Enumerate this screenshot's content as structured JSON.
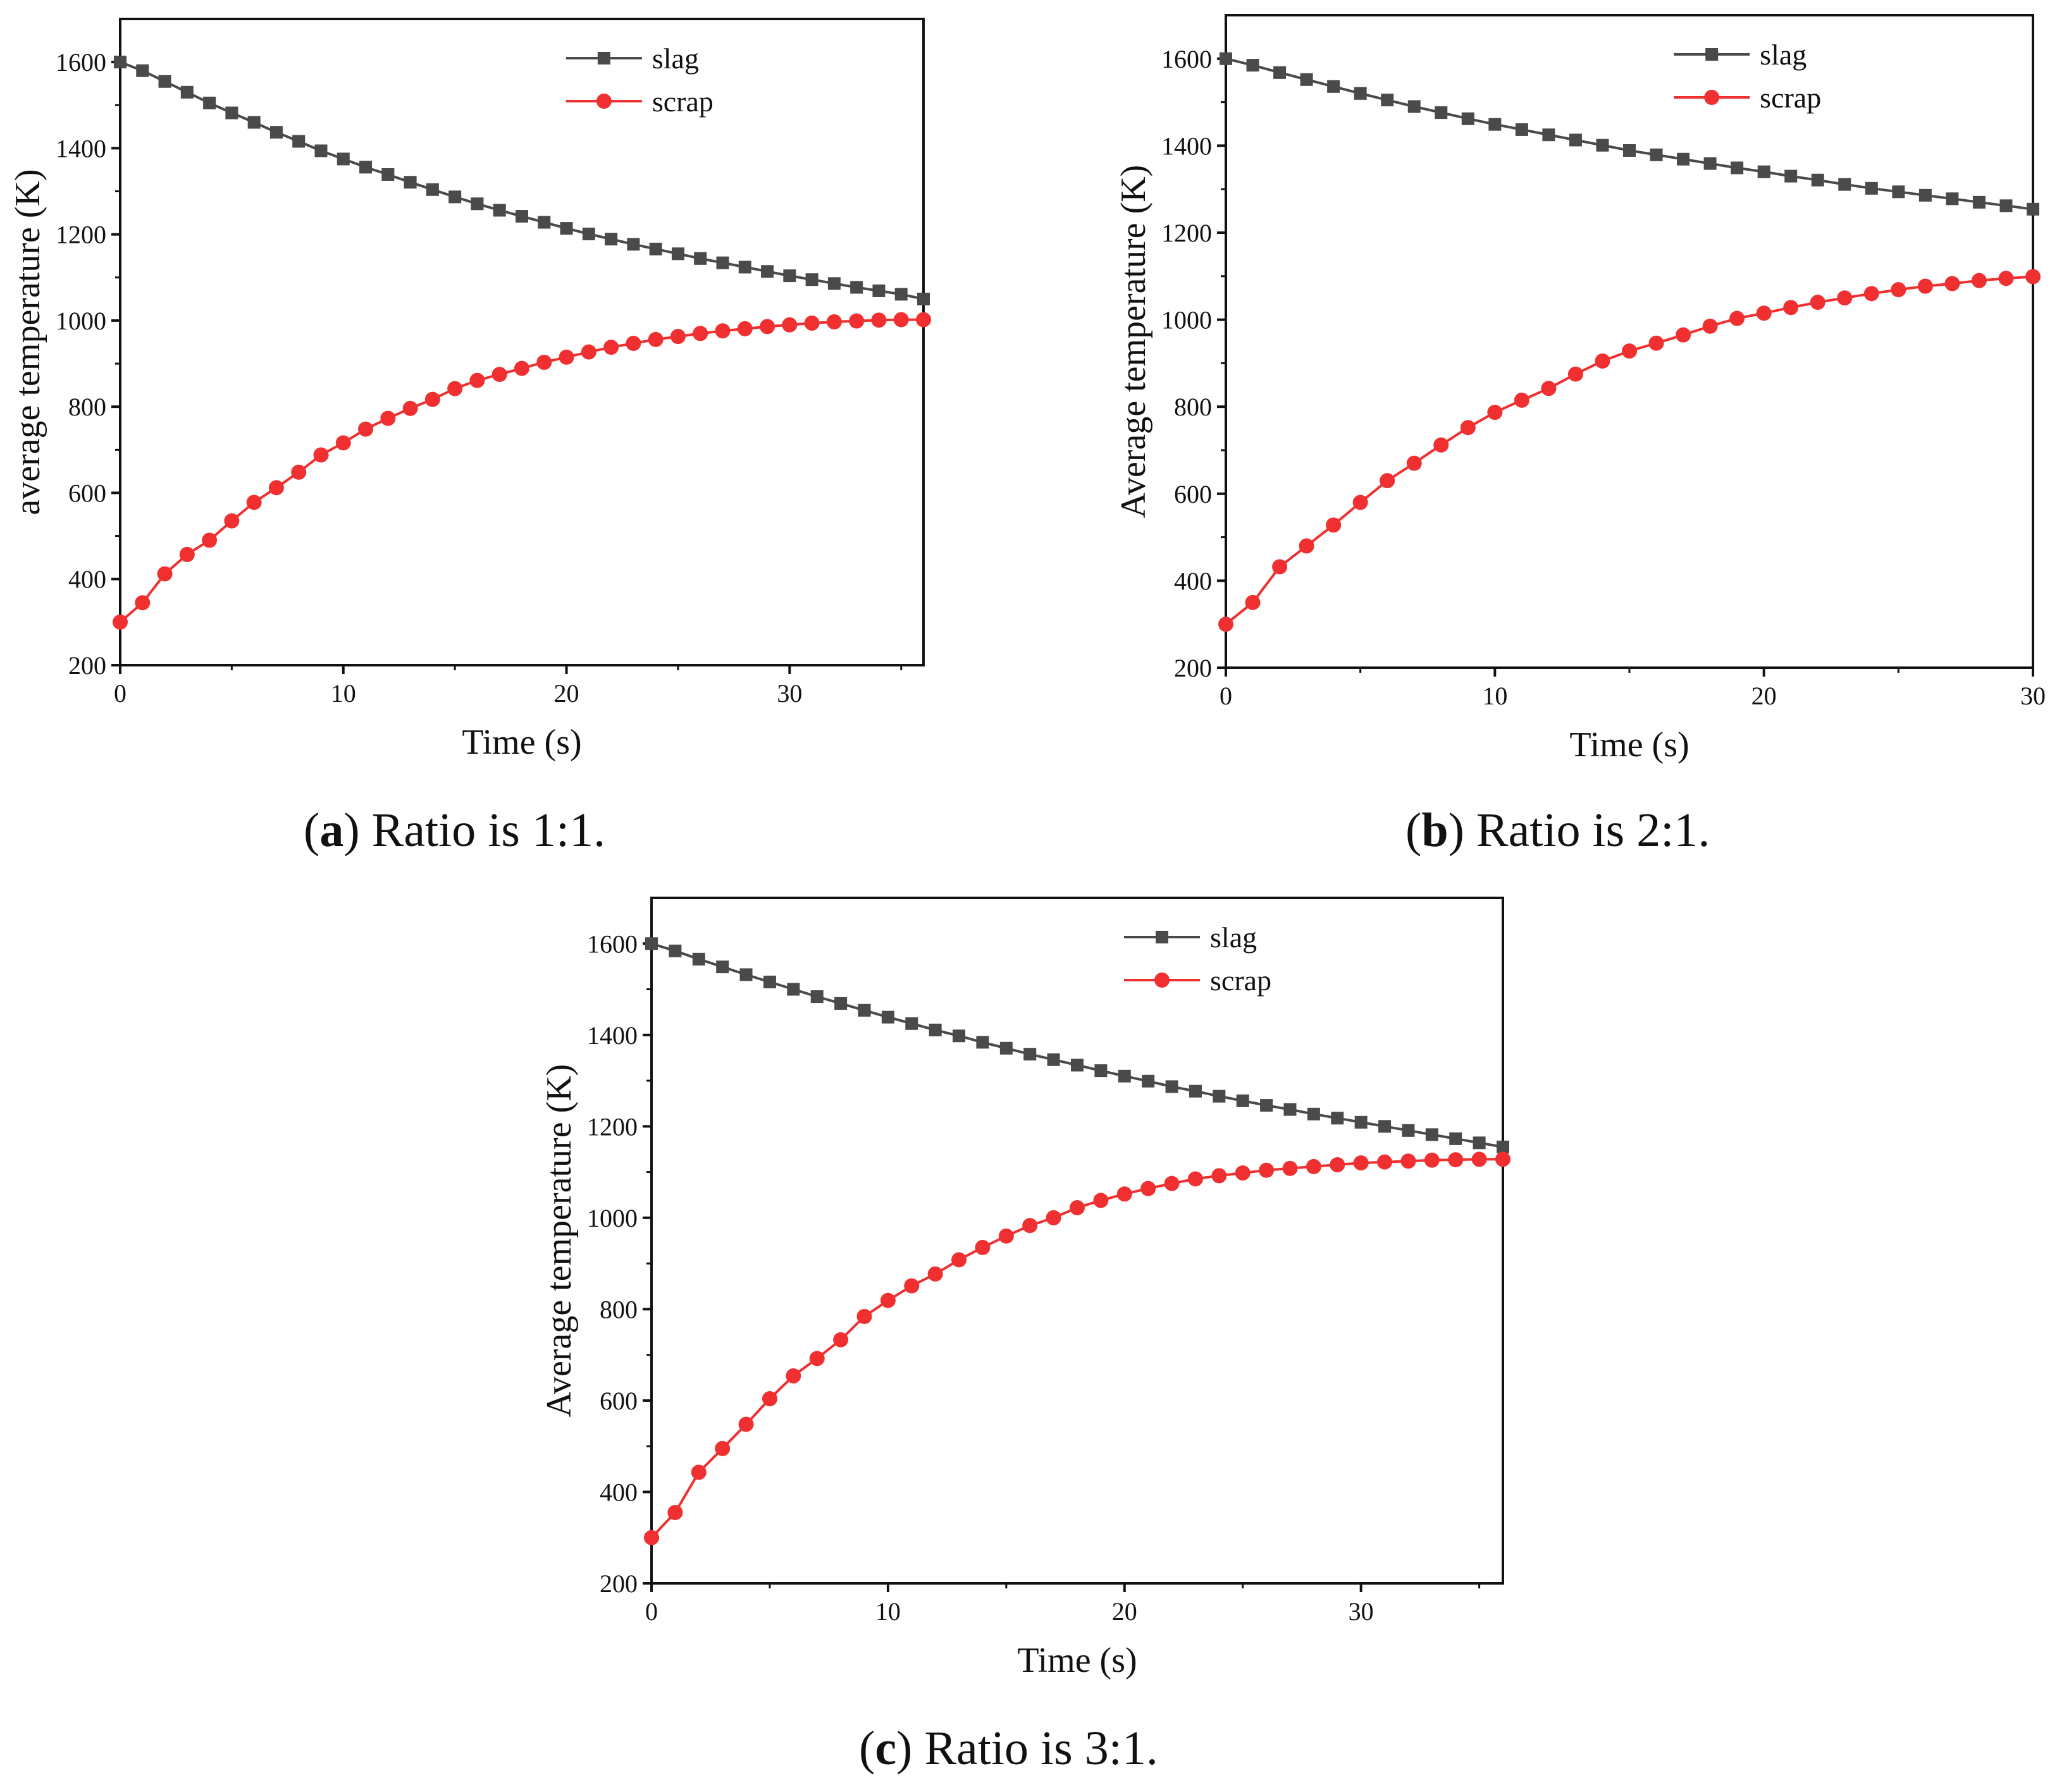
{
  "panels": [
    {
      "id": "a",
      "caption_letter": "a",
      "caption_text": " Ratio is 1:1.",
      "xlabel": "Time (s)",
      "ylabel": "average temperature (K)"
    },
    {
      "id": "b",
      "caption_letter": "b",
      "caption_text": " Ratio is 2:1.",
      "xlabel": "Time (s)",
      "ylabel": "Average temperature (K)"
    },
    {
      "id": "c",
      "caption_letter": "c",
      "caption_text": " Ratio is 3:1.",
      "xlabel": "Time (s)",
      "ylabel": "Average temperature (K)"
    }
  ],
  "colors": {
    "slag": "#4a4a4a",
    "scrap": "#f03030",
    "axis": "#111111"
  },
  "chart_data": [
    {
      "type": "line",
      "title": "",
      "xlabel": "Time (s)",
      "ylabel": "average temperature (K)",
      "xlim": [
        0,
        36
      ],
      "ylim": [
        200,
        1700
      ],
      "xticks": [
        0,
        10,
        20,
        30
      ],
      "yticks": [
        200,
        400,
        600,
        800,
        1000,
        1200,
        1400,
        1600
      ],
      "legend": "top-right",
      "grid": false,
      "x": [
        0,
        1,
        2,
        3,
        4,
        5,
        6,
        7,
        8,
        9,
        10,
        11,
        12,
        13,
        14,
        15,
        16,
        17,
        18,
        19,
        20,
        21,
        22,
        23,
        24,
        25,
        26,
        27,
        28,
        29,
        30,
        31,
        32,
        33,
        34,
        35,
        36
      ],
      "series": [
        {
          "name": "slag",
          "marker": "square",
          "values": [
            1600,
            1580,
            1555,
            1530,
            1505,
            1482,
            1460,
            1437,
            1416,
            1394,
            1375,
            1356,
            1339,
            1321,
            1304,
            1287,
            1271,
            1256,
            1242,
            1228,
            1214,
            1201,
            1189,
            1177,
            1166,
            1155,
            1144,
            1134,
            1124,
            1114,
            1104,
            1095,
            1086,
            1077,
            1069,
            1061,
            1050
          ]
        },
        {
          "name": "scrap",
          "marker": "circle",
          "values": [
            300,
            345,
            412,
            457,
            490,
            535,
            578,
            612,
            648,
            688,
            716,
            748,
            773,
            796,
            817,
            842,
            861,
            875,
            889,
            903,
            915,
            927,
            938,
            947,
            956,
            963,
            970,
            976,
            981,
            986,
            990,
            994,
            997,
            999,
            1001,
            1002,
            1002
          ]
        }
      ]
    },
    {
      "type": "line",
      "title": "",
      "xlabel": "Time (s)",
      "ylabel": "Average temperature (K)",
      "xlim": [
        0,
        30
      ],
      "ylim": [
        200,
        1700
      ],
      "xticks": [
        0,
        10,
        20,
        30
      ],
      "yticks": [
        200,
        400,
        600,
        800,
        1000,
        1200,
        1400,
        1600
      ],
      "legend": "top-right",
      "grid": false,
      "x": [
        0,
        1,
        2,
        3,
        4,
        5,
        6,
        7,
        8,
        9,
        10,
        11,
        12,
        13,
        14,
        15,
        16,
        17,
        18,
        19,
        20,
        21,
        22,
        23,
        24,
        25,
        26,
        27,
        28,
        29,
        30
      ],
      "series": [
        {
          "name": "slag",
          "marker": "square",
          "values": [
            1600,
            1585,
            1568,
            1552,
            1536,
            1520,
            1505,
            1490,
            1476,
            1462,
            1449,
            1437,
            1425,
            1413,
            1401,
            1389,
            1379,
            1369,
            1359,
            1349,
            1340,
            1330,
            1321,
            1311,
            1302,
            1294,
            1286,
            1278,
            1270,
            1262,
            1254
          ]
        },
        {
          "name": "scrap",
          "marker": "circle",
          "values": [
            300,
            350,
            432,
            480,
            528,
            580,
            630,
            670,
            712,
            752,
            787,
            815,
            842,
            875,
            905,
            928,
            946,
            965,
            985,
            1003,
            1015,
            1028,
            1040,
            1050,
            1060,
            1069,
            1077,
            1083,
            1090,
            1095,
            1099
          ]
        }
      ]
    },
    {
      "type": "line",
      "title": "",
      "xlabel": "Time (s)",
      "ylabel": "Average temperature (K)",
      "xlim": [
        0,
        36
      ],
      "ylim": [
        200,
        1700
      ],
      "xticks": [
        0,
        10,
        20,
        30
      ],
      "yticks": [
        200,
        400,
        600,
        800,
        1000,
        1200,
        1400,
        1600
      ],
      "legend": "top-right",
      "grid": false,
      "x": [
        0,
        1,
        2,
        3,
        4,
        5,
        6,
        7,
        8,
        9,
        10,
        11,
        12,
        13,
        14,
        15,
        16,
        17,
        18,
        19,
        20,
        21,
        22,
        23,
        24,
        25,
        26,
        27,
        28,
        29,
        30,
        31,
        32,
        33,
        34,
        35,
        36
      ],
      "series": [
        {
          "name": "slag",
          "marker": "square",
          "values": [
            1600,
            1584,
            1566,
            1549,
            1532,
            1516,
            1500,
            1484,
            1469,
            1454,
            1439,
            1425,
            1411,
            1398,
            1384,
            1371,
            1358,
            1346,
            1334,
            1322,
            1310,
            1299,
            1287,
            1277,
            1266,
            1256,
            1246,
            1237,
            1227,
            1218,
            1209,
            1200,
            1191,
            1182,
            1173,
            1164,
            1155
          ]
        },
        {
          "name": "scrap",
          "marker": "circle",
          "values": [
            300,
            355,
            443,
            495,
            548,
            604,
            654,
            692,
            733,
            784,
            819,
            851,
            877,
            908,
            935,
            960,
            983,
            1000,
            1022,
            1038,
            1052,
            1064,
            1075,
            1085,
            1092,
            1098,
            1104,
            1108,
            1112,
            1116,
            1120,
            1122,
            1124,
            1126,
            1127,
            1128,
            1128
          ]
        }
      ]
    }
  ]
}
